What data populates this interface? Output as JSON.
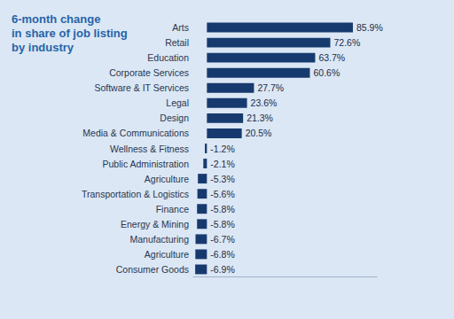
{
  "chart_data": {
    "type": "bar",
    "title": "6-month change\nin share of job listing\nby industry",
    "orientation": "horizontal",
    "categories": [
      "Arts",
      "Retail",
      "Education",
      "Corporate Services",
      "Software & IT Services",
      "Legal",
      "Design",
      "Media & Communications",
      "Wellness & Fitness",
      "Public Administration",
      "Agriculture",
      "Transportation & Logistics",
      "Finance",
      "Energy & Mining",
      "Manufacturing",
      "Agriculture",
      "Consumer Goods"
    ],
    "values": [
      85.9,
      72.6,
      63.7,
      60.6,
      27.7,
      23.6,
      21.3,
      20.5,
      -1.2,
      -2.1,
      -5.3,
      -5.6,
      -5.8,
      -5.8,
      -6.7,
      -6.8,
      -6.9
    ],
    "value_labels": [
      "85.9%",
      "72.6%",
      "63.7%",
      "60.6%",
      "27.7%",
      "23.6%",
      "21.3%",
      "20.5%",
      "-1.2%",
      "-2.1%",
      "-5.3%",
      "-5.6%",
      "-5.8%",
      "-5.8%",
      "-6.7%",
      "-6.8%",
      "-6.9%"
    ],
    "color": "#173a6e",
    "xlim": [
      -8,
      100
    ],
    "xticks": [],
    "grid": false,
    "data_labels": true,
    "tick_labels": "y"
  }
}
